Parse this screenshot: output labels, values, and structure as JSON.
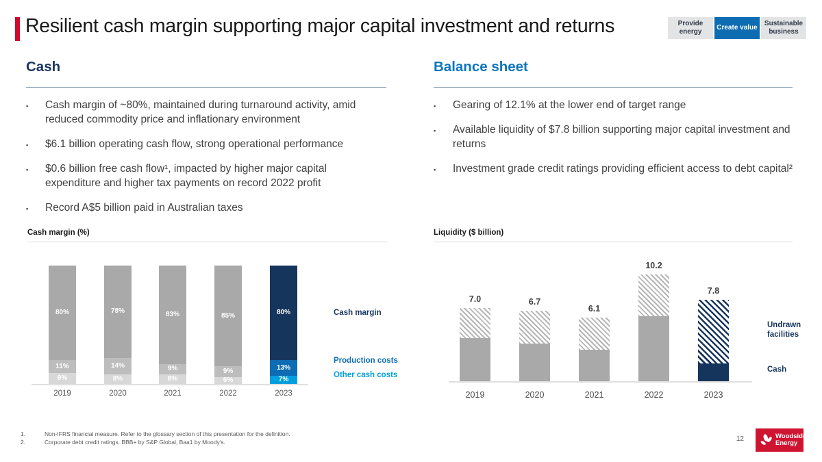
{
  "slide": {
    "title": "Resilient cash margin supporting major capital investment and returns",
    "page_number": "12",
    "accent_color": "#cf0a2c"
  },
  "badges": [
    {
      "label": "Provide energy",
      "active": false
    },
    {
      "label": "Create value",
      "active": true
    },
    {
      "label": "Sustainable business",
      "active": false
    }
  ],
  "sections": {
    "cash": {
      "heading": "Cash",
      "bullets": [
        "Cash margin of ~80%, maintained during turnaround activity, amid reduced commodity price and inflationary environment",
        "$6.1 billion operating cash flow, strong operational performance",
        "$0.6 billion free cash flow¹, impacted by higher major capital expenditure and higher tax payments on record 2022 profit",
        "Record A$5 billion paid in Australian taxes"
      ]
    },
    "balance_sheet": {
      "heading": "Balance sheet",
      "bullets": [
        "Gearing of 12.1% at the lower end of target range",
        "Available liquidity of $7.8 billion supporting major capital investment and returns",
        "Investment grade credit ratings providing efficient access to debt capital²"
      ]
    }
  },
  "chart_data": [
    {
      "type": "bar",
      "stacked": true,
      "title": "Cash margin (%)",
      "categories": [
        "2019",
        "2020",
        "2021",
        "2022",
        "2023"
      ],
      "series": [
        {
          "name": "Other cash costs",
          "values": [
            9,
            8,
            8,
            6,
            7
          ],
          "color_default": "#d8d8d8",
          "color_highlight": "#00a0df"
        },
        {
          "name": "Production costs",
          "values": [
            11,
            14,
            9,
            9,
            13
          ],
          "color_default": "#bdbdbd",
          "color_highlight": "#0d6cb2"
        },
        {
          "name": "Cash margin",
          "values": [
            80,
            78,
            83,
            85,
            80
          ],
          "color_default": "#a9a9a9",
          "color_highlight": "#16355d"
        }
      ],
      "highlight_category": "2023",
      "unit": "%",
      "ylim": [
        0,
        100
      ],
      "grid": false,
      "legend_position": "right",
      "segment_label_format": "percent"
    },
    {
      "type": "bar",
      "stacked": true,
      "title": "Liquidity ($ billion)",
      "categories": [
        "2019",
        "2020",
        "2021",
        "2022",
        "2023"
      ],
      "series": [
        {
          "name": "Cash",
          "values": [
            4.1,
            3.6,
            3.0,
            6.2,
            1.7
          ],
          "style": "solid",
          "color_default": "#a9a9a9",
          "color_highlight": "#16355d"
        },
        {
          "name": "Undrawn facilities",
          "values": [
            2.9,
            3.1,
            3.1,
            4.0,
            6.1
          ],
          "style": "hatch",
          "color_default": "hatch-gray",
          "color_highlight": "hatch-navy"
        }
      ],
      "totals": [
        "7.0",
        "6.7",
        "6.1",
        "10.2",
        "7.8"
      ],
      "highlight_category": "2023",
      "unit": "$ billion",
      "grid": false,
      "legend_position": "right"
    }
  ],
  "footnotes": [
    {
      "num": "1.",
      "text": "Non-IFRS financial measure. Refer to the glossary section of this presentation for the definition."
    },
    {
      "num": "2.",
      "text": "Corporate debt credit ratings. BBB+ by S&P Global, Baa1 by Moody’s."
    }
  ],
  "logo": {
    "line1": "Woodside",
    "line2": "Energy"
  }
}
